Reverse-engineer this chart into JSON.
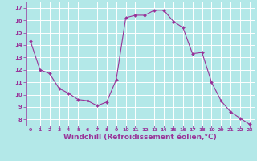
{
  "x": [
    0,
    1,
    2,
    3,
    4,
    5,
    6,
    7,
    8,
    9,
    10,
    11,
    12,
    13,
    14,
    15,
    16,
    17,
    18,
    19,
    20,
    21,
    22,
    23
  ],
  "y": [
    14.3,
    12.0,
    11.7,
    10.5,
    10.1,
    9.6,
    9.5,
    9.1,
    9.4,
    11.2,
    16.2,
    16.4,
    16.4,
    16.8,
    16.8,
    15.9,
    15.4,
    13.3,
    13.4,
    11.0,
    9.5,
    8.6,
    8.1,
    7.6
  ],
  "line_color": "#993399",
  "marker": "D",
  "marker_size": 2.0,
  "bg_color": "#b3e8e8",
  "grid_color": "#ffffff",
  "xlabel": "Windchill (Refroidissement éolien,°C)",
  "xlabel_fontsize": 6.5,
  "xlabel_color": "#993399",
  "yticks": [
    8,
    9,
    10,
    11,
    12,
    13,
    14,
    15,
    16,
    17
  ],
  "xticks": [
    0,
    1,
    2,
    3,
    4,
    5,
    6,
    7,
    8,
    9,
    10,
    11,
    12,
    13,
    14,
    15,
    16,
    17,
    18,
    19,
    20,
    21,
    22,
    23
  ],
  "ylim": [
    7.5,
    17.5
  ],
  "xlim": [
    -0.5,
    23.5
  ]
}
